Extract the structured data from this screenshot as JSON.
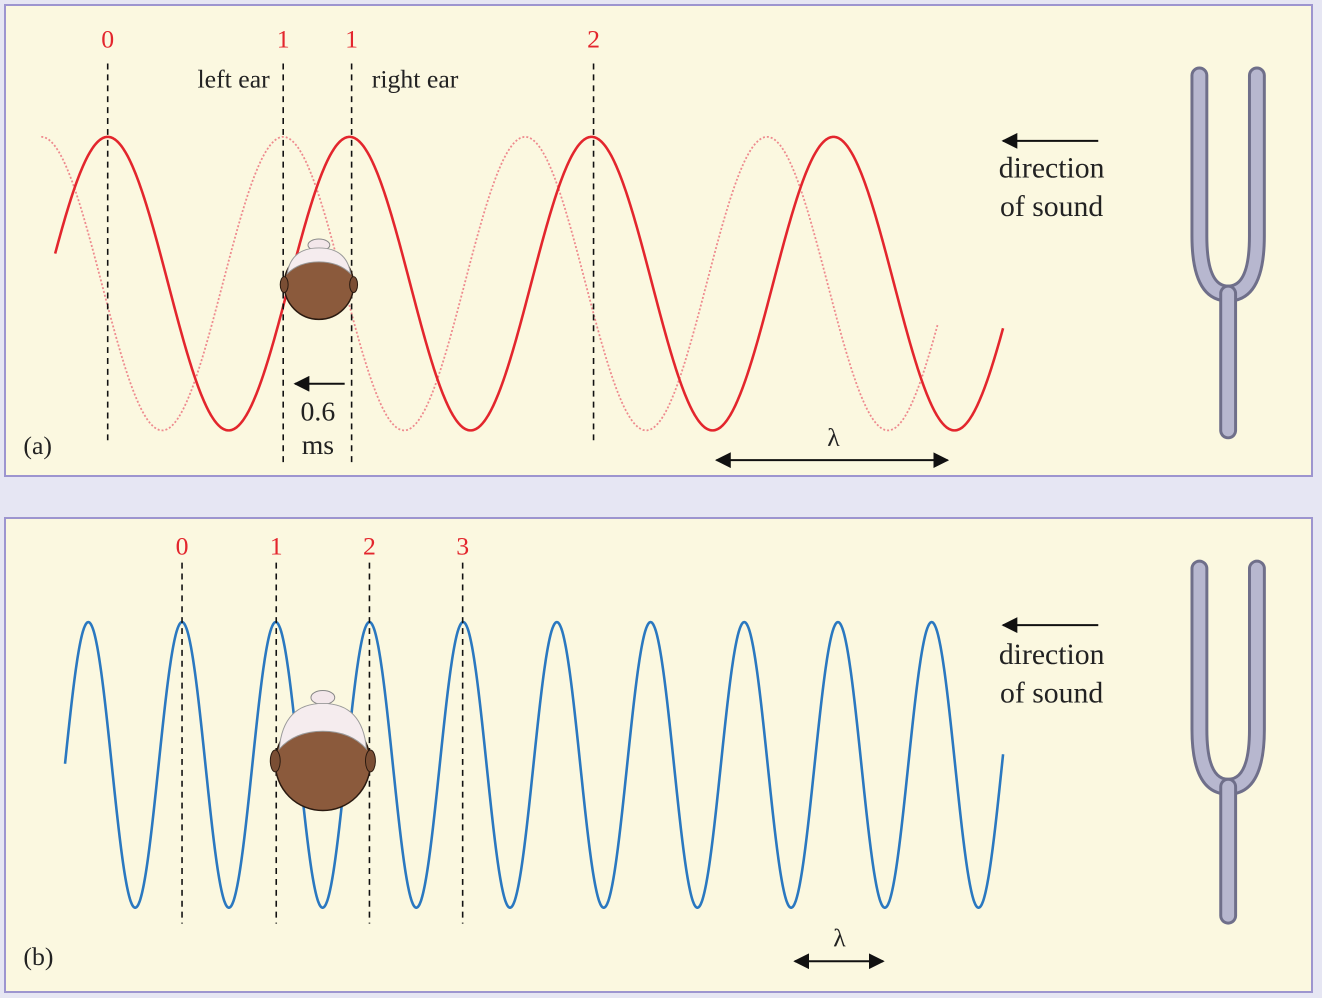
{
  "panel_a": {
    "label": "(a)",
    "markers": [
      "0",
      "1",
      "1",
      "2"
    ],
    "left_ear": "left ear",
    "right_ear": "right ear",
    "delay_value": "0.6",
    "delay_unit": "ms",
    "wavelength_symbol": "λ",
    "direction_line1": "direction",
    "direction_line2": "of sound"
  },
  "panel_b": {
    "label": "(b)",
    "markers": [
      "0",
      "1",
      "2",
      "3"
    ],
    "wavelength_symbol": "λ",
    "direction_line1": "direction",
    "direction_line2": "of sound"
  },
  "colors": {
    "wave_a": "#e3262d",
    "wave_a_faint": "#ee8a8e",
    "wave_b": "#2a78c0",
    "marker_text": "#e3262d",
    "panel_bg": "#fbf8e0",
    "panel_border": "#9d95cf",
    "head": "#8b5a3c",
    "tuning_fork": "#a9a9c4"
  }
}
